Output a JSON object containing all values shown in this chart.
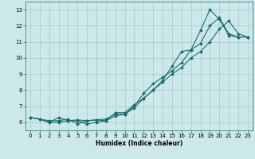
{
  "xlabel": "Humidex (Indice chaleur)",
  "bg_color": "#cce8eb",
  "grid_color": "#adc8cc",
  "line_color": "#1a6b6b",
  "xlim": [
    -0.5,
    23.5
  ],
  "ylim": [
    5.5,
    13.5
  ],
  "x_ticks": [
    0,
    1,
    2,
    3,
    4,
    5,
    6,
    7,
    8,
    9,
    10,
    11,
    12,
    13,
    14,
    15,
    16,
    17,
    18,
    19,
    20,
    21,
    22,
    23
  ],
  "y_ticks": [
    6,
    7,
    8,
    9,
    10,
    11,
    12,
    13
  ],
  "series1_x": [
    0,
    1,
    2,
    3,
    4,
    5,
    6,
    7,
    8,
    9,
    10,
    11,
    12,
    13,
    14,
    15,
    16,
    17,
    18,
    19,
    20,
    21,
    22,
    23
  ],
  "series1_y": [
    6.3,
    6.2,
    6.1,
    6.1,
    6.2,
    5.9,
    6.1,
    6.15,
    6.2,
    6.5,
    6.5,
    7.0,
    7.8,
    8.4,
    8.8,
    9.2,
    9.7,
    10.5,
    11.7,
    13.0,
    12.4,
    11.4,
    11.3,
    11.3
  ],
  "series2_x": [
    0,
    1,
    2,
    3,
    4,
    5,
    6,
    7,
    8,
    9,
    10,
    11,
    12,
    13,
    14,
    15,
    16,
    17,
    18,
    19,
    20,
    21,
    22,
    23
  ],
  "series2_y": [
    6.3,
    6.2,
    6.0,
    6.0,
    6.1,
    6.1,
    5.9,
    6.0,
    6.1,
    6.4,
    6.5,
    6.9,
    7.5,
    8.0,
    8.5,
    9.0,
    9.4,
    10.0,
    10.4,
    11.0,
    11.8,
    12.3,
    11.5,
    11.3
  ],
  "series3_x": [
    0,
    1,
    2,
    3,
    4,
    5,
    6,
    7,
    8,
    9,
    10,
    11,
    12,
    13,
    14,
    15,
    16,
    17,
    18,
    19,
    20,
    21,
    22,
    23
  ],
  "series3_y": [
    6.3,
    6.2,
    6.0,
    6.3,
    6.1,
    6.15,
    6.1,
    6.15,
    6.1,
    6.6,
    6.6,
    7.1,
    7.5,
    8.0,
    8.6,
    9.5,
    10.4,
    10.5,
    10.9,
    12.0,
    12.5,
    11.5,
    11.3,
    11.3
  ],
  "tick_fontsize": 5.0,
  "xlabel_fontsize": 5.5,
  "marker_size": 2.0,
  "line_width": 0.8
}
